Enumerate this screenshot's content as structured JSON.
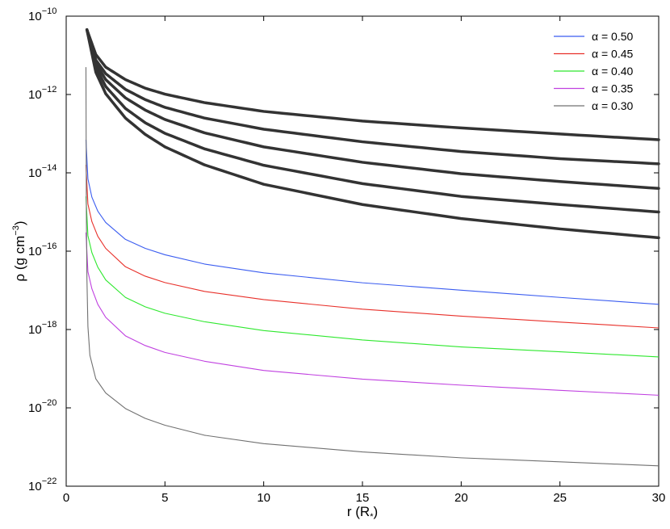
{
  "chart_data": {
    "type": "line",
    "xlabel": "r (R",
    "xlabel_sub": "*",
    "xlabel_end": ")",
    "ylabel": "ρ (g cm",
    "ylabel_sup": "−3",
    "ylabel_end": ")",
    "xlim": [
      0,
      30
    ],
    "ylim_log10": [
      -22,
      -10
    ],
    "y_scale": "log",
    "grid": false,
    "legend_position": "top-right",
    "x_ticks": [
      0,
      5,
      10,
      15,
      20,
      25,
      30
    ],
    "y_ticks": [
      {
        "base": "10",
        "exp": "−22",
        "log": -22
      },
      {
        "base": "10",
        "exp": "−20",
        "log": -20
      },
      {
        "base": "10",
        "exp": "−18",
        "log": -18
      },
      {
        "base": "10",
        "exp": "−16",
        "log": -16
      },
      {
        "base": "10",
        "exp": "−14",
        "log": -14
      },
      {
        "base": "10",
        "exp": "−12",
        "log": -12
      },
      {
        "base": "10",
        "exp": "−10",
        "log": -10
      }
    ],
    "series": [
      {
        "name": "α = 0.50",
        "color": "#3a5cf0",
        "x": [
          1,
          1.1,
          1.3,
          1.6,
          2,
          3,
          4,
          5,
          7,
          10,
          15,
          20,
          25,
          30
        ],
        "y": [
          "7e-14",
          "7e-15",
          "2.4e-15",
          "1.05e-15",
          "5.4e-16",
          "2.0e-16",
          "1.18e-16",
          "8.1e-17",
          "4.7e-17",
          "2.8e-17",
          "1.56e-17",
          "1.01e-17",
          "6.6e-18",
          "4.4e-18"
        ]
      },
      {
        "name": "α = 0.45",
        "color": "#e8302a",
        "x": [
          1,
          1.1,
          1.3,
          1.6,
          2,
          3,
          4,
          5,
          7,
          10,
          15,
          20,
          25,
          30
        ],
        "y": [
          "1.6e-14",
          "1.6e-15",
          "5.7e-16",
          "2.4e-16",
          "1.18e-16",
          "4.0e-17",
          "2.3e-17",
          "1.58e-17",
          "9.4e-18",
          "5.8e-18",
          "3.3e-18",
          "2.2e-18",
          "1.55e-18",
          "1.1e-18"
        ]
      },
      {
        "name": "α = 0.40",
        "color": "#2ee82e",
        "x": [
          1,
          1.1,
          1.3,
          1.6,
          2,
          3,
          4,
          5,
          7,
          10,
          15,
          20,
          25,
          30
        ],
        "y": [
          "2.5e-15",
          "2.5e-16",
          "9.2e-17",
          "3.9e-17",
          "1.85e-17",
          "6.6e-18",
          "3.8e-18",
          "2.6e-18",
          "1.58e-18",
          "9.4e-19",
          "5.4e-19",
          "3.6e-19",
          "2.7e-19",
          "2.0e-19"
        ]
      },
      {
        "name": "α = 0.35",
        "color": "#c040e0",
        "x": [
          1,
          1.1,
          1.3,
          1.6,
          2,
          3,
          4,
          5,
          7,
          10,
          15,
          20,
          25,
          30
        ],
        "y": [
          "3.0e-16",
          "3.0e-17",
          "1.1e-17",
          "4.4e-18",
          "2.05e-18",
          "6.9e-19",
          "3.9e-19",
          "2.6e-19",
          "1.55e-19",
          "9.0e-20",
          "5.4e-20",
          "3.8e-20",
          "2.8e-20",
          "2.1e-20"
        ]
      },
      {
        "name": "α = 0.30",
        "color": "#707070",
        "x": [
          1,
          1.02,
          1.05,
          1.1,
          1.2,
          1.5,
          2,
          3,
          4,
          5,
          7,
          10,
          15,
          20,
          25,
          30
        ],
        "y": [
          "5e-12",
          "1e-15",
          "2e-17",
          "1.2e-18",
          "2.2e-19",
          "5.5e-20",
          "2.4e-20",
          "9.6e-21",
          "5.4e-21",
          "3.6e-21",
          "2.0e-21",
          "1.22e-21",
          "7.5e-22",
          "5.3e-22",
          "4.2e-22",
          "3.3e-22"
        ]
      }
    ],
    "reference_curves": {
      "color": "#333333",
      "x": [
        1.05,
        1.5,
        2,
        3,
        4,
        5,
        7,
        10,
        15,
        20,
        25,
        30
      ],
      "curves": [
        [
          "4.5e-11",
          "1.05e-11",
          "5.0e-12",
          "2.4e-12",
          "1.45e-12",
          "1.02e-12",
          "6.2e-13",
          "3.7e-13",
          "2.1e-13",
          "1.4e-13",
          "9.8e-14",
          "7.0e-14"
        ],
        [
          "4.5e-11",
          "7.6e-12",
          "3.4e-12",
          "1.35e-12",
          "7.4e-13",
          "4.7e-13",
          "2.5e-13",
          "1.3e-13",
          "6.2e-14",
          "3.5e-14",
          "2.3e-14",
          "1.7e-14"
        ],
        [
          "4.5e-11",
          "6.3e-12",
          "2.4e-12",
          "8.2e-13",
          "4.0e-13",
          "2.3e-13",
          "1.05e-13",
          "4.6e-14",
          "1.86e-14",
          "9.5e-15",
          "6.0e-15",
          "4.0e-15"
        ],
        [
          "4.5e-11",
          "5.0e-12",
          "1.6e-12",
          "4.4e-13",
          "1.9e-13",
          "1.02e-13",
          "4.1e-14",
          "1.56e-14",
          "5.3e-15",
          "2.5e-15",
          "1.55e-15",
          "1.0e-15"
        ],
        [
          "4.5e-11",
          "3.7e-12",
          "1.05e-12",
          "2.5e-13",
          "9.6e-14",
          "4.6e-14",
          "1.6e-14",
          "5.1e-15",
          "1.55e-15",
          "6.8e-16",
          "3.7e-16",
          "2.2e-16"
        ]
      ]
    }
  }
}
